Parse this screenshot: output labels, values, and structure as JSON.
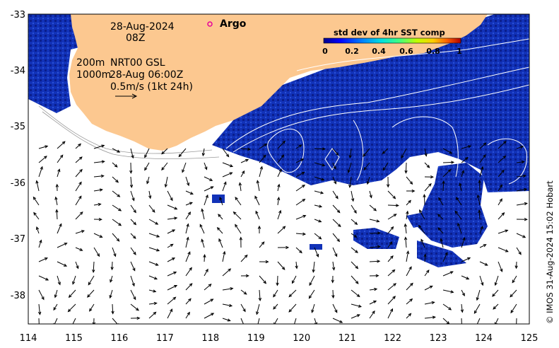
{
  "header": {
    "date": "28-Aug-2024",
    "hour": "08Z",
    "depth_line1": "200m",
    "product": "NRT00 GSL",
    "depth_line2": "1000m",
    "timestamp": "28-Aug 06:00Z",
    "scale_label": "0.5m/s (1kt 24h)"
  },
  "legend": {
    "argo_label": "Argo",
    "argo_color": "#e6009a"
  },
  "colorbar": {
    "title": "std dev of 4hr SST comp",
    "ticks": [
      "0",
      "0.2",
      "0.4",
      "0.6",
      "0.8",
      "1"
    ],
    "colors": [
      "#00008b",
      "#0000ff",
      "#0080ff",
      "#00e0e0",
      "#40ff80",
      "#c0ff00",
      "#ffcc00",
      "#ff6000",
      "#b00000"
    ]
  },
  "axes": {
    "x_ticks": [
      "114",
      "115",
      "116",
      "117",
      "118",
      "119",
      "120",
      "121",
      "122",
      "123",
      "124",
      "125"
    ],
    "y_ticks": [
      "-33",
      "-34",
      "-35",
      "-36",
      "-37",
      "-38"
    ],
    "lon_range": [
      114,
      125
    ],
    "lat_range": [
      -32.97,
      -38.5
    ]
  },
  "colors": {
    "land": "#fcc890",
    "ocean_sst": "#1232b8",
    "ocean_dark": "#0a1e8c",
    "contour": "#ffffff",
    "vector": "#000000"
  },
  "credit": "© IMOS 31-Aug-2024 15:02 Hobart"
}
